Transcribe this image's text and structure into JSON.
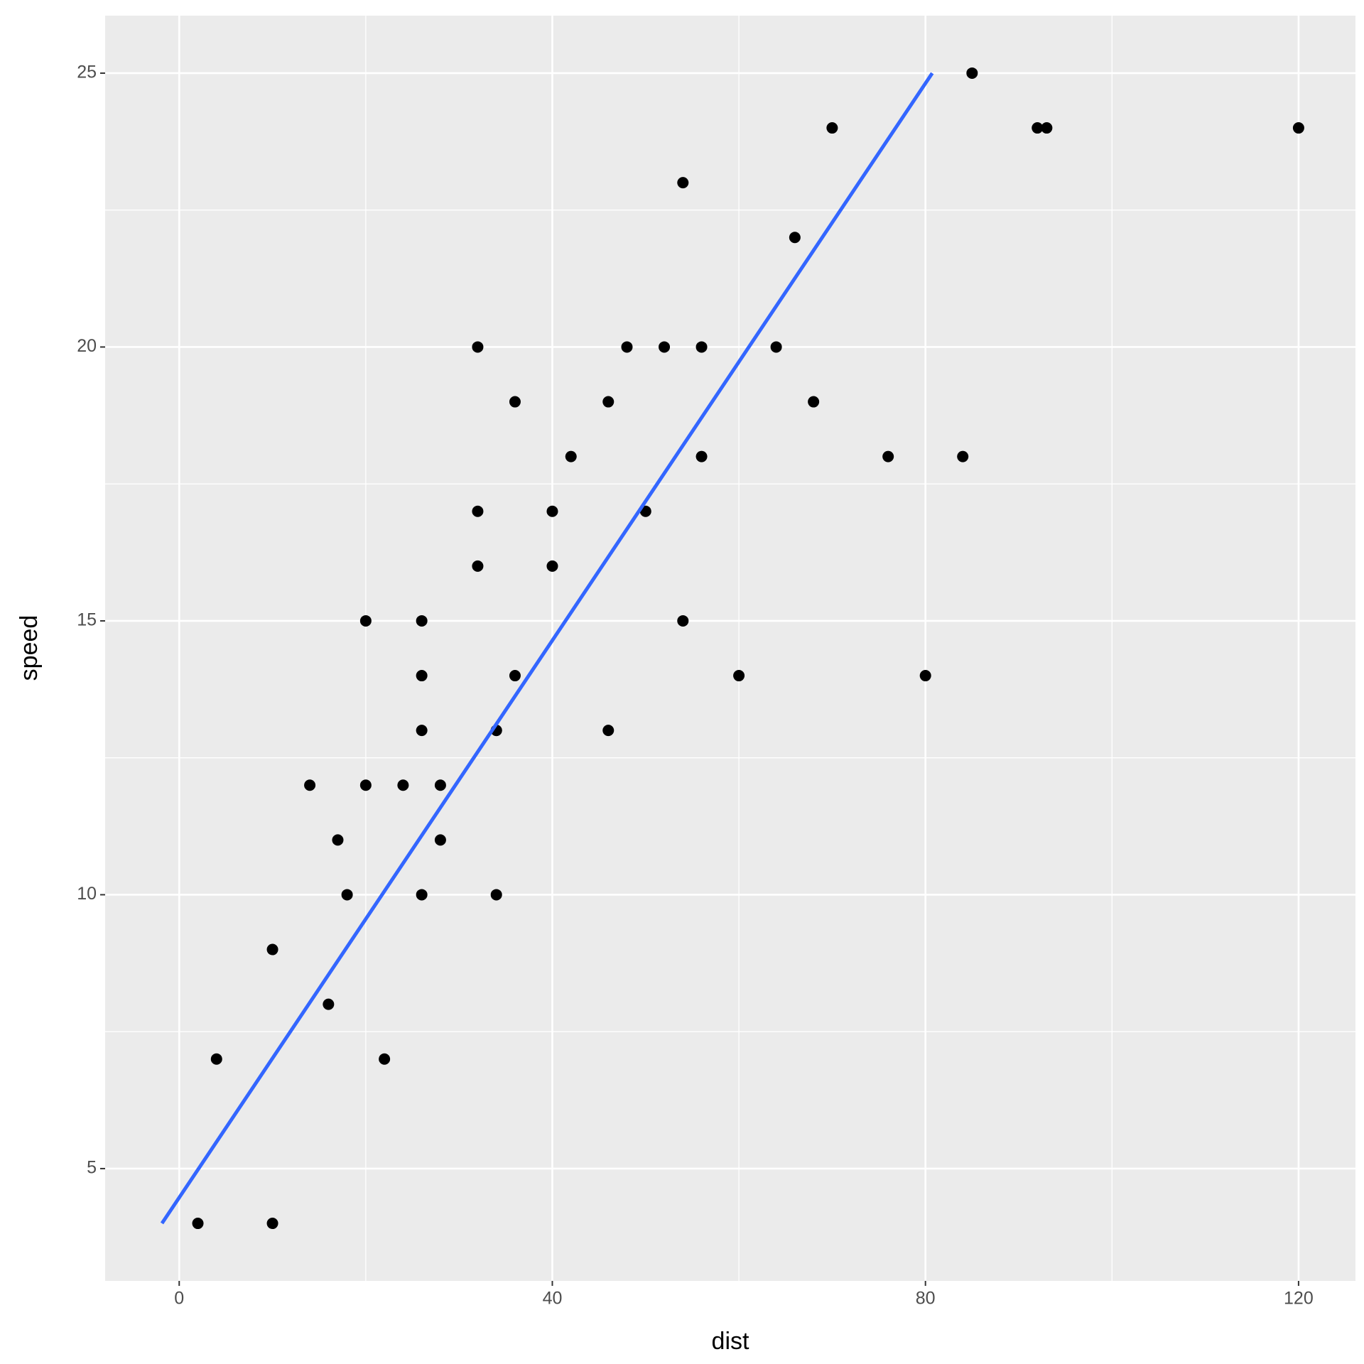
{
  "chart_data": {
    "type": "scatter",
    "x_label": "dist",
    "y_label": "speed",
    "x": [
      2,
      10,
      4,
      22,
      16,
      10,
      18,
      26,
      34,
      17,
      28,
      14,
      20,
      24,
      28,
      26,
      34,
      34,
      46,
      26,
      36,
      60,
      80,
      20,
      26,
      54,
      32,
      40,
      32,
      40,
      50,
      42,
      56,
      76,
      84,
      36,
      46,
      68,
      32,
      48,
      52,
      56,
      64,
      66,
      54,
      70,
      92,
      93,
      120,
      85
    ],
    "values": [
      4,
      4,
      7,
      7,
      8,
      9,
      10,
      10,
      10,
      11,
      11,
      12,
      12,
      12,
      12,
      13,
      13,
      13,
      13,
      14,
      14,
      14,
      14,
      15,
      15,
      15,
      16,
      16,
      17,
      17,
      17,
      18,
      18,
      18,
      18,
      19,
      19,
      19,
      20,
      20,
      20,
      20,
      20,
      22,
      23,
      24,
      24,
      24,
      24,
      25
    ],
    "color": "#000000",
    "fit": {
      "x": [
        -1.85,
        80.73
      ],
      "values": [
        4,
        25
      ],
      "color": "#3366ff"
    },
    "xlim": [
      -7.94,
      126.1
    ],
    "ylim": [
      2.95,
      26.05
    ],
    "xticks": [
      0,
      40,
      80,
      120
    ],
    "yticks": [
      5,
      10,
      15,
      20,
      25
    ],
    "xminor": [
      20,
      60,
      100
    ],
    "yminor": [
      7.5,
      12.5,
      17.5,
      22.5
    ],
    "grid": true
  }
}
